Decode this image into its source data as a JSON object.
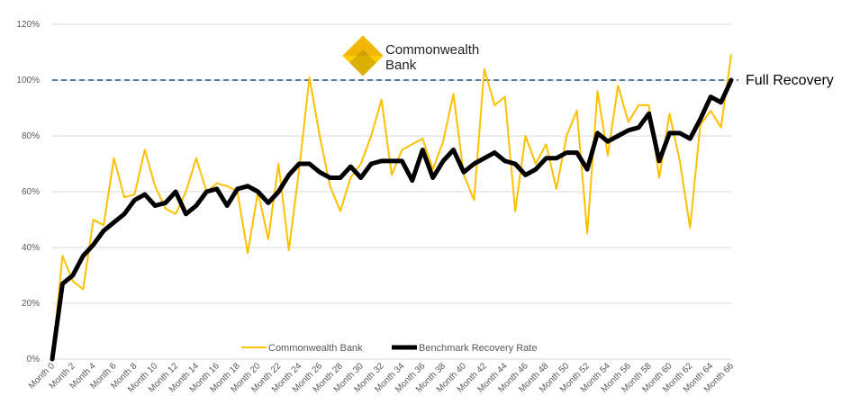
{
  "chart_data": {
    "type": "line",
    "x_tick_labels": [
      "Month 0",
      "Month 2",
      "Month 4",
      "Month 6",
      "Month 8",
      "Month 10",
      "Month 12",
      "Month 14",
      "Month 16",
      "Month 18",
      "Month 20",
      "Month 22",
      "Month 24",
      "Month 26",
      "Month 28",
      "Month 30",
      "Month 32",
      "Month 34",
      "Month 36",
      "Month 38",
      "Month 40",
      "Month 42",
      "Month 44",
      "Month 46",
      "Month 48",
      "Month 50",
      "Month 52",
      "Month 54",
      "Month 56",
      "Month 58",
      "Month 60",
      "Month 62",
      "Month 64",
      "Month 66"
    ],
    "y_tick_labels": [
      "0%",
      "20%",
      "40%",
      "60%",
      "80%",
      "100%",
      "120%"
    ],
    "ylim": [
      0,
      120
    ],
    "xlim": [
      0,
      66
    ],
    "grid": "horizontal",
    "legend_position": "bottom",
    "series": [
      {
        "name": "Commonwealth Bank",
        "color": "#FFC000",
        "values": [
          0,
          37,
          28,
          25,
          50,
          48,
          72,
          58,
          59,
          75,
          62,
          54,
          52,
          60,
          72,
          60,
          63,
          62,
          60,
          38,
          60,
          43,
          70,
          39,
          68,
          101,
          80,
          62,
          53,
          65,
          70,
          80,
          93,
          66,
          75,
          77,
          79,
          68,
          78,
          95,
          66,
          57,
          104,
          91,
          94,
          53,
          80,
          70,
          77,
          61,
          80,
          89,
          45,
          96,
          73,
          98,
          85,
          91,
          91,
          65,
          88,
          71,
          47,
          84,
          89,
          83,
          109
        ]
      },
      {
        "name": "Benchmark Recovery Rate",
        "color": "#000000",
        "values": [
          0,
          27,
          30,
          37,
          41,
          46,
          49,
          52,
          57,
          59,
          55,
          56,
          60,
          52,
          55,
          60,
          61,
          55,
          61,
          62,
          60,
          56,
          60,
          66,
          70,
          70,
          67,
          65,
          65,
          69,
          65,
          70,
          71,
          71,
          71,
          64,
          75,
          65,
          71,
          75,
          67,
          70,
          72,
          74,
          71,
          70,
          66,
          68,
          72,
          72,
          74,
          74,
          68,
          81,
          78,
          80,
          82,
          83,
          88,
          71,
          81,
          81,
          79,
          86,
          94,
          92,
          100
        ]
      }
    ],
    "reference_line": {
      "y": 100,
      "label": "Full Recovery",
      "color": "#1F4E79",
      "style": "dashed"
    }
  },
  "logo": {
    "line1": "Commonwealth",
    "line2": "Bank"
  }
}
